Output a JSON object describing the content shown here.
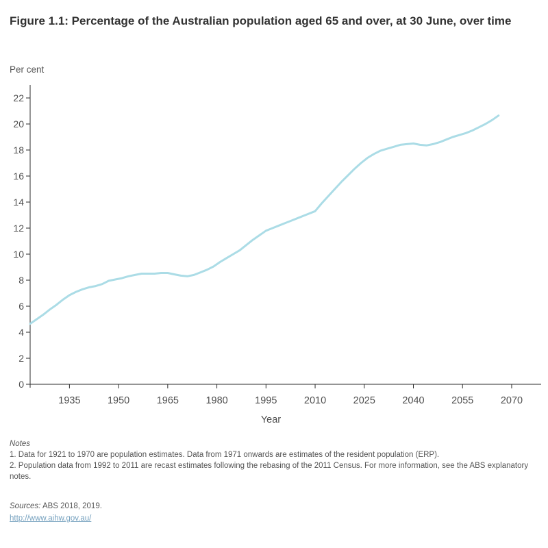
{
  "page": {
    "title": "Figure 1.1: Percentage of the Australian population aged 65 and over, at 30 June, over time"
  },
  "chart_data": {
    "type": "line",
    "title": "Figure 1.1: Percentage of the Australian population aged 65 and over, at 30 June, over time",
    "xlabel": "Year",
    "ylabel": "Per cent",
    "xlim": [
      1923,
      2079
    ],
    "ylim": [
      0,
      23
    ],
    "x_ticks": [
      1935,
      1950,
      1965,
      1980,
      1995,
      2010,
      2025,
      2040,
      2055,
      2070
    ],
    "y_ticks": [
      0,
      2,
      4,
      6,
      8,
      10,
      12,
      14,
      16,
      18,
      20,
      22
    ],
    "grid": false,
    "legend_position": "none",
    "series": [
      {
        "name": "Percentage of population aged 65 and over",
        "points": [
          [
            1921,
            4.5
          ],
          [
            1923,
            4.65
          ],
          [
            1925,
            5.0
          ],
          [
            1927,
            5.35
          ],
          [
            1929,
            5.75
          ],
          [
            1931,
            6.1
          ],
          [
            1933,
            6.5
          ],
          [
            1935,
            6.85
          ],
          [
            1937,
            7.1
          ],
          [
            1939,
            7.3
          ],
          [
            1941,
            7.45
          ],
          [
            1943,
            7.55
          ],
          [
            1945,
            7.7
          ],
          [
            1947,
            7.95
          ],
          [
            1949,
            8.05
          ],
          [
            1951,
            8.15
          ],
          [
            1953,
            8.3
          ],
          [
            1955,
            8.4
          ],
          [
            1957,
            8.5
          ],
          [
            1959,
            8.5
          ],
          [
            1961,
            8.5
          ],
          [
            1963,
            8.55
          ],
          [
            1965,
            8.55
          ],
          [
            1967,
            8.45
          ],
          [
            1969,
            8.35
          ],
          [
            1971,
            8.3
          ],
          [
            1973,
            8.4
          ],
          [
            1975,
            8.6
          ],
          [
            1977,
            8.8
          ],
          [
            1979,
            9.05
          ],
          [
            1981,
            9.4
          ],
          [
            1983,
            9.7
          ],
          [
            1985,
            10.0
          ],
          [
            1987,
            10.3
          ],
          [
            1989,
            10.7
          ],
          [
            1991,
            11.1
          ],
          [
            1993,
            11.45
          ],
          [
            1995,
            11.8
          ],
          [
            1997,
            12.0
          ],
          [
            1999,
            12.2
          ],
          [
            2001,
            12.4
          ],
          [
            2003,
            12.6
          ],
          [
            2005,
            12.8
          ],
          [
            2007,
            13.0
          ],
          [
            2009,
            13.2
          ],
          [
            2010,
            13.3
          ],
          [
            2012,
            13.9
          ],
          [
            2014,
            14.45
          ],
          [
            2016,
            15.0
          ],
          [
            2018,
            15.55
          ],
          [
            2020,
            16.05
          ],
          [
            2022,
            16.55
          ],
          [
            2024,
            17.0
          ],
          [
            2026,
            17.4
          ],
          [
            2028,
            17.7
          ],
          [
            2030,
            17.95
          ],
          [
            2032,
            18.1
          ],
          [
            2034,
            18.25
          ],
          [
            2036,
            18.4
          ],
          [
            2038,
            18.45
          ],
          [
            2040,
            18.5
          ],
          [
            2042,
            18.4
          ],
          [
            2044,
            18.35
          ],
          [
            2046,
            18.45
          ],
          [
            2048,
            18.6
          ],
          [
            2050,
            18.8
          ],
          [
            2052,
            19.0
          ],
          [
            2054,
            19.15
          ],
          [
            2056,
            19.3
          ],
          [
            2058,
            19.5
          ],
          [
            2060,
            19.75
          ],
          [
            2062,
            20.0
          ],
          [
            2064,
            20.3
          ],
          [
            2066,
            20.65
          ]
        ]
      }
    ]
  },
  "axis_labels": {
    "y_unit": "Per cent",
    "x_title": "Year"
  },
  "notes": {
    "heading": "Notes",
    "items": [
      "1. Data for 1921 to 1970 are population estimates. Data from 1971 onwards are estimates of the resident population (ERP).",
      "2.  Population data from 1992 to 2011 are recast estimates following the rebasing of the 2011 Census. For more information, see the ABS explanatory notes."
    ]
  },
  "sources": {
    "label": "Sources:",
    "text": " ABS 2018, 2019.",
    "link": "http://www.aihw.gov.au/"
  },
  "colors": {
    "line": "#abdce6",
    "axis": "#2b2b2b",
    "tick_label": "#4f4f4f",
    "title": "#323232",
    "notes_text": "#555555",
    "link": "#74a0be",
    "background": "#ffffff"
  }
}
